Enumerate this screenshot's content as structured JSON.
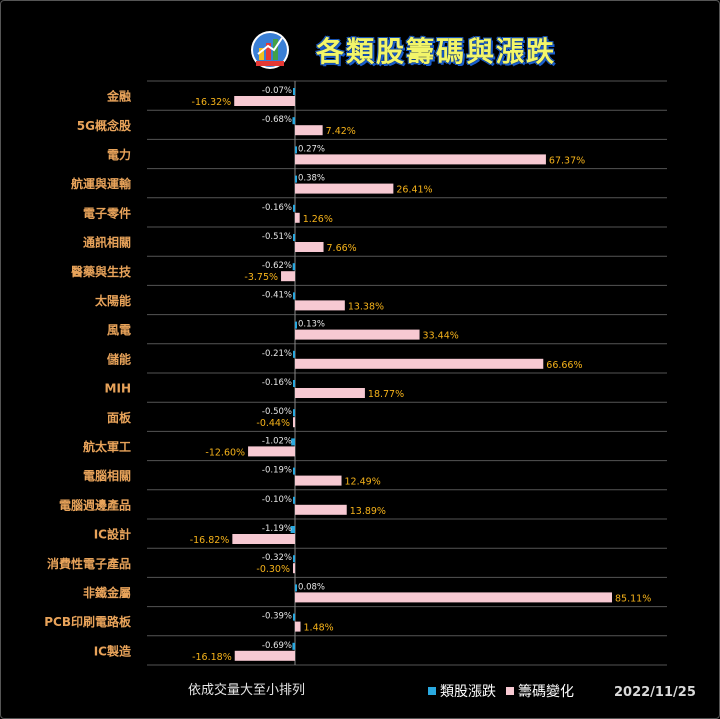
{
  "header": {
    "title": "各類股籌碼與漲跌"
  },
  "colors": {
    "background": "#000000",
    "category_label": "#e8a35a",
    "sector_change_bar": "#2aa9e0",
    "chip_change_bar": "#f7c9d2",
    "positive_value_label": "#f5b21a",
    "small_value_label": "#e6e6e6",
    "gridline": "#555555",
    "title": "#f2f56a"
  },
  "chart_data": {
    "type": "bar",
    "orientation": "horizontal",
    "title": "各類股籌碼與漲跌",
    "categories": [
      "金融",
      "5G概念股",
      "電力",
      "航運與運輸",
      "電子零件",
      "通訊相關",
      "醫藥與生技",
      "太陽能",
      "風電",
      "儲能",
      "MIH",
      "面板",
      "航太軍工",
      "電腦相關",
      "電腦週邊產品",
      "IC設計",
      "消費性電子產品",
      "非鐵金屬",
      "PCB印刷電路板",
      "IC製造"
    ],
    "series": [
      {
        "name": "類股漲跌",
        "values": [
          -0.07,
          -0.68,
          0.27,
          0.38,
          -0.16,
          -0.51,
          -0.62,
          -0.41,
          0.13,
          -0.21,
          -0.16,
          -0.5,
          -1.02,
          -0.19,
          -0.1,
          -1.19,
          -0.32,
          0.08,
          -0.39,
          -0.69
        ],
        "labels": [
          "-0.07%",
          "-0.68%",
          "0.27%",
          "0.38%",
          "-0.16%",
          "-0.51%",
          "-0.62%",
          "-0.41%",
          "0.13%",
          "-0.21%",
          "-0.16%",
          "-0.50%",
          "-1.02%",
          "-0.19%",
          "-0.10%",
          "-1.19%",
          "-0.32%",
          "0.08%",
          "-0.39%",
          "-0.69%"
        ]
      },
      {
        "name": "籌碼變化",
        "values": [
          -16.32,
          7.42,
          67.37,
          26.41,
          1.26,
          7.66,
          -3.75,
          13.38,
          33.44,
          66.66,
          18.77,
          -0.44,
          -12.6,
          12.49,
          13.89,
          -16.82,
          -0.3,
          85.11,
          1.48,
          -16.18
        ],
        "labels": [
          "-16.32%",
          "7.42%",
          "67.37%",
          "26.41%",
          "1.26%",
          "7.66%",
          "-3.75%",
          "13.38%",
          "33.44%",
          "66.66%",
          "18.77%",
          "-0.44%",
          "-12.60%",
          "12.49%",
          "13.89%",
          "-16.82%",
          "-0.30%",
          "85.11%",
          "1.48%",
          "-16.18%"
        ]
      }
    ],
    "xlim": [
      -21.5,
      85.11
    ],
    "grid": true,
    "legend_position": "bottom-right"
  },
  "footer": {
    "note": "依成交量大至小排列",
    "date": "2022/11/25"
  },
  "legend": {
    "items": [
      "類股漲跌",
      "籌碼變化"
    ]
  }
}
